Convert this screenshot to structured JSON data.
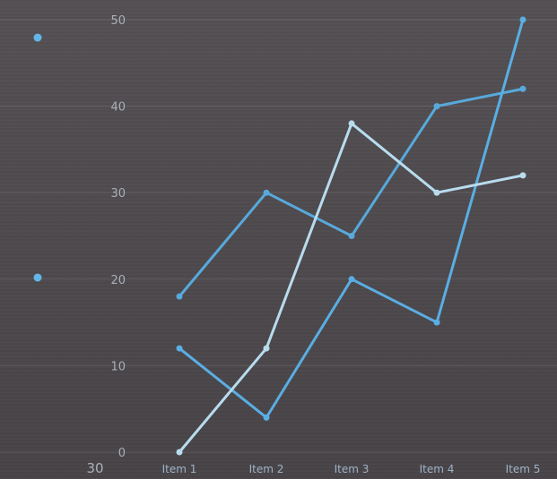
{
  "chart_data": {
    "type": "line",
    "categories": [
      "Item 1",
      "Item 2",
      "Item 3",
      "Item 4",
      "Item 5"
    ],
    "ylim": [
      0,
      50
    ],
    "yticks": [
      0,
      10,
      20,
      30,
      40,
      50
    ],
    "series": [
      {
        "values": [
          18,
          30,
          25,
          40,
          42
        ],
        "color": "#58a9db"
      },
      {
        "values": [
          12,
          4,
          20,
          15,
          50
        ],
        "color": "#5aaee3"
      },
      {
        "values": [
          0,
          12,
          38,
          30,
          32
        ],
        "color": "#b8dcee"
      }
    ],
    "extra_label": "30",
    "legend_markers": [
      {
        "color": "#63b7e8"
      },
      {
        "color": "#63b7e8"
      }
    ],
    "grid": true,
    "legend": "left"
  }
}
